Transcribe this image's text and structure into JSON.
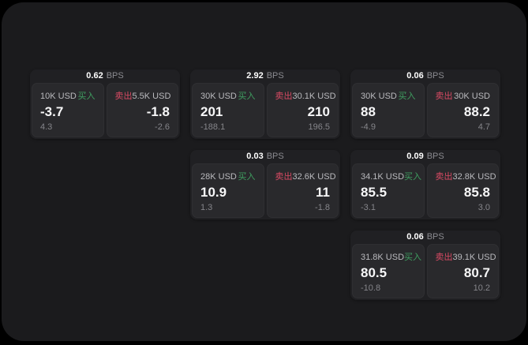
{
  "labels": {
    "bps_unit": "BPS",
    "buy": "买入",
    "sell": "卖出"
  },
  "colors": {
    "buy_green": "#3f9e60",
    "sell_red": "#d84a63",
    "window_bg": "#1b1b1d",
    "card_bg": "#202023",
    "pane_bg": "#29292c"
  },
  "cards": [
    {
      "col": 1,
      "row": 1,
      "bps": "0.62",
      "buy": {
        "size": "10K USD",
        "value": "-3.7",
        "delta": "4.3"
      },
      "sell": {
        "size": "5.5K USD",
        "value": "-1.8",
        "delta": "-2.6"
      }
    },
    {
      "col": 2,
      "row": 1,
      "bps": "2.92",
      "buy": {
        "size": "30K USD",
        "value": "201",
        "delta": "-188.1"
      },
      "sell": {
        "size": "30.1K USD",
        "value": "210",
        "delta": "196.5"
      }
    },
    {
      "col": 3,
      "row": 1,
      "bps": "0.06",
      "buy": {
        "size": "30K USD",
        "value": "88",
        "delta": "-4.9"
      },
      "sell": {
        "size": "30K USD",
        "value": "88.2",
        "delta": "4.7"
      }
    },
    {
      "col": 2,
      "row": 2,
      "bps": "0.03",
      "buy": {
        "size": "28K USD",
        "value": "10.9",
        "delta": "1.3"
      },
      "sell": {
        "size": "32.6K USD",
        "value": "11",
        "delta": "-1.8"
      }
    },
    {
      "col": 3,
      "row": 2,
      "bps": "0.09",
      "buy": {
        "size": "34.1K USD",
        "value": "85.5",
        "delta": "-3.1"
      },
      "sell": {
        "size": "32.8K USD",
        "value": "85.8",
        "delta": "3.0"
      }
    },
    {
      "col": 3,
      "row": 3,
      "bps": "0.06",
      "buy": {
        "size": "31.8K USD",
        "value": "80.5",
        "delta": "-10.8"
      },
      "sell": {
        "size": "39.1K USD",
        "value": "80.7",
        "delta": "10.2"
      }
    }
  ]
}
